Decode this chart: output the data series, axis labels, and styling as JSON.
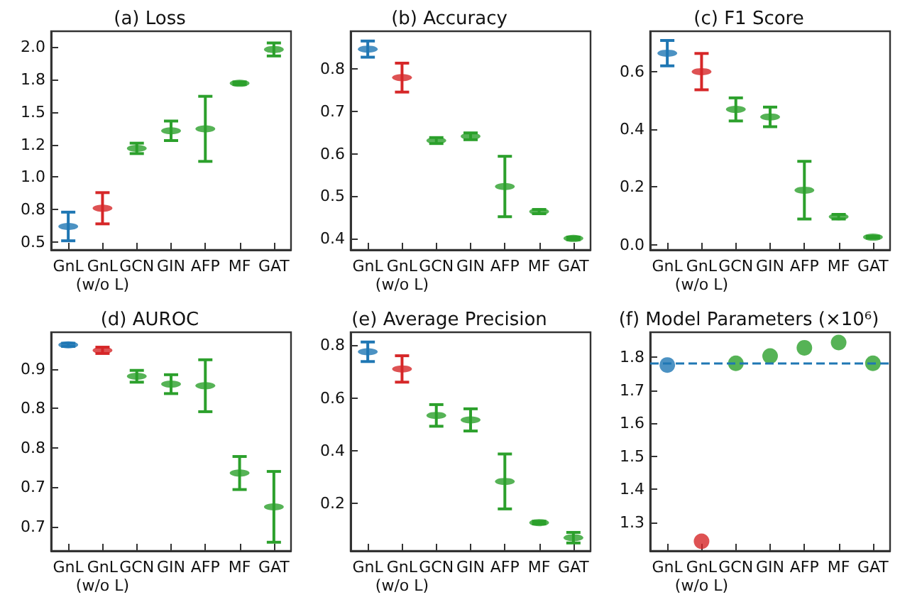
{
  "chart_data": [
    {
      "type": "scatter",
      "title": "(a) Loss",
      "categories": [
        "GnL",
        "GnL\n(w/o L)",
        "GCN",
        "GIN",
        "AFP",
        "MF",
        "GAT"
      ],
      "series": [
        {
          "values": [
            0.62,
            0.76,
            1.22,
            1.355,
            1.37,
            1.72,
            1.98
          ],
          "colors": [
            "#1f77b4",
            "#d62728",
            "#2ca02c",
            "#2ca02c",
            "#2ca02c",
            "#2ca02c",
            "#2ca02c"
          ],
          "errors": [
            0.11,
            0.12,
            0.04,
            0.075,
            0.25,
            0.01,
            0.05
          ]
        }
      ],
      "ylim": [
        0.44,
        2.12
      ],
      "yticks": [
        0.5,
        {
          "value": 0.75,
          "label": "0.8"
        },
        {
          "value": 1.0,
          "label": "1.0"
        },
        {
          "value": 1.25,
          "label": "1.2"
        },
        1.5,
        {
          "value": 1.75,
          "label": "1.8"
        },
        {
          "value": 2.0,
          "label": "2.0"
        }
      ],
      "grid": false
    },
    {
      "type": "scatter",
      "title": "(b) Accuracy",
      "categories": [
        "GnL",
        "GnL\n(w/o L)",
        "GCN",
        "GIN",
        "AFP",
        "MF",
        "GAT"
      ],
      "series": [
        {
          "values": [
            0.846,
            0.779,
            0.631,
            0.641,
            0.523,
            0.464,
            0.401
          ],
          "colors": [
            "#1f77b4",
            "#d62728",
            "#2ca02c",
            "#2ca02c",
            "#2ca02c",
            "#2ca02c",
            "#2ca02c"
          ],
          "errors": [
            0.019,
            0.034,
            0.007,
            0.008,
            0.071,
            0.005,
            0.003
          ]
        }
      ],
      "ylim": [
        0.374,
        0.888
      ],
      "yticks": [
        0.4,
        0.5,
        0.6,
        0.7,
        0.8
      ],
      "grid": false
    },
    {
      "type": "scatter",
      "title": "(c) F1 Score",
      "categories": [
        "GnL",
        "GnL\n(w/o L)",
        "GCN",
        "GIN",
        "AFP",
        "MF",
        "GAT"
      ],
      "series": [
        {
          "values": [
            0.664,
            0.6,
            0.469,
            0.443,
            0.189,
            0.097,
            0.026
          ],
          "colors": [
            "#1f77b4",
            "#d62728",
            "#2ca02c",
            "#2ca02c",
            "#2ca02c",
            "#2ca02c",
            "#2ca02c"
          ],
          "errors": [
            0.044,
            0.063,
            0.04,
            0.034,
            0.1,
            0.008,
            0.003
          ]
        }
      ],
      "ylim": [
        -0.018,
        0.74
      ],
      "yticks": [
        {
          "value": 0,
          "label": "0.0"
        },
        0.2,
        0.4,
        0.6
      ],
      "grid": false
    },
    {
      "type": "scatter",
      "title": "(d) AUROC",
      "categories": [
        "GnL",
        "GnL\n(w/o L)",
        "GCN",
        "GIN",
        "AFP",
        "MF",
        "GAT"
      ],
      "series": [
        {
          "values": [
            0.931,
            0.924,
            0.891,
            0.881,
            0.879,
            0.768,
            0.725
          ],
          "colors": [
            "#1f77b4",
            "#d62728",
            "#2ca02c",
            "#2ca02c",
            "#2ca02c",
            "#2ca02c",
            "#2ca02c"
          ],
          "errors": [
            0.002,
            0.004,
            0.0075,
            0.012,
            0.033,
            0.021,
            0.045
          ]
        }
      ],
      "ylim": [
        0.669,
        0.947
      ],
      "yticks": [
        {
          "value": 0.7,
          "label": "0.7"
        },
        {
          "value": 0.75,
          "label": "0.7"
        },
        {
          "value": 0.8,
          "label": "0.8"
        },
        {
          "value": 0.85,
          "label": "0.8"
        },
        {
          "value": 0.9,
          "label": "0.9"
        }
      ],
      "grid": false
    },
    {
      "type": "scatter",
      "title": "(e) Average Precision",
      "categories": [
        "GnL",
        "GnL\n(w/o L)",
        "GCN",
        "GIN",
        "AFP",
        "MF",
        "GAT"
      ],
      "series": [
        {
          "values": [
            0.775,
            0.71,
            0.534,
            0.517,
            0.284,
            0.128,
            0.071
          ],
          "colors": [
            "#1f77b4",
            "#d62728",
            "#2ca02c",
            "#2ca02c",
            "#2ca02c",
            "#2ca02c",
            "#2ca02c"
          ],
          "errors": [
            0.037,
            0.05,
            0.041,
            0.042,
            0.104,
            0.005,
            0.02
          ]
        }
      ],
      "ylim": [
        0.021,
        0.849
      ],
      "yticks": [
        0.2,
        0.4,
        0.6,
        0.8
      ],
      "grid": false
    },
    {
      "type": "scatter",
      "title": "(f) Model Parameters (×10⁶)",
      "categories": [
        "GnL",
        "GnL\n(w/o L)",
        "GCN",
        "GIN",
        "AFP",
        "MF",
        "GAT"
      ],
      "series": [
        {
          "values": [
            1.776,
            1.243,
            1.781,
            1.803,
            1.828,
            1.844,
            1.781
          ],
          "colors": [
            "#1f77b4",
            "#d62728",
            "#2ca02c",
            "#2ca02c",
            "#2ca02c",
            "#2ca02c",
            "#2ca02c"
          ]
        }
      ],
      "ylim": [
        1.214,
        1.875
      ],
      "yticks": [
        1.3,
        1.4,
        1.5,
        1.6,
        1.7,
        1.8
      ],
      "grid": false,
      "marker": "circle",
      "ref_lines": [
        {
          "axis": "y",
          "value": 1.776,
          "color": "#1f77b4",
          "line_style": "dashed"
        }
      ]
    }
  ]
}
